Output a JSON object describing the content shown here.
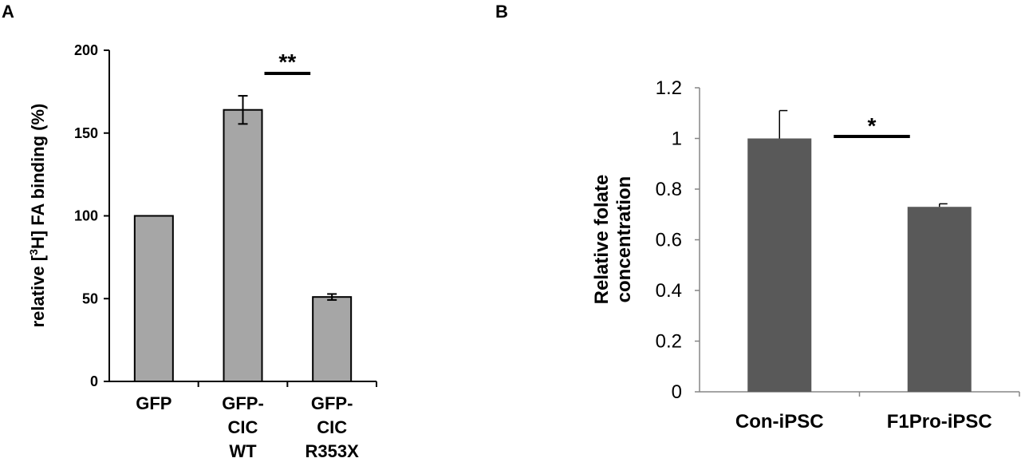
{
  "chart_data": [
    {
      "panel": "A",
      "type": "bar",
      "categories": [
        [
          "GFP"
        ],
        [
          "GFP-",
          "CIC",
          "WT"
        ],
        [
          "GFP-",
          "CIC",
          "R353X"
        ]
      ],
      "values": [
        100,
        164,
        51
      ],
      "errors": [
        0,
        8.5,
        1.8
      ],
      "ylabel_prefix": "relative [",
      "ylabel_sup": "3",
      "ylabel_suffix": "H] FA binding (%)",
      "ylim": [
        0,
        200
      ],
      "yticks": [
        "0",
        "50",
        "100",
        "150",
        "200"
      ],
      "significance": {
        "label": "**",
        "between": [
          1,
          2
        ]
      },
      "bar_color": "#a6a6a6"
    },
    {
      "panel": "B",
      "type": "bar",
      "categories": [
        "Con-iPSC",
        "F1Pro-iPSC"
      ],
      "values": [
        1.0,
        0.73
      ],
      "errors": [
        0.11,
        0.012
      ],
      "ylabel_lines": [
        "Relative folate",
        "concentration"
      ],
      "ylim": [
        0,
        1.2
      ],
      "yticks": [
        "0",
        "0.2",
        "0.4",
        "0.6",
        "0.8",
        "1",
        "1.2"
      ],
      "significance": {
        "label": "*",
        "between": [
          0,
          1
        ]
      },
      "bar_color": "#595959"
    }
  ]
}
